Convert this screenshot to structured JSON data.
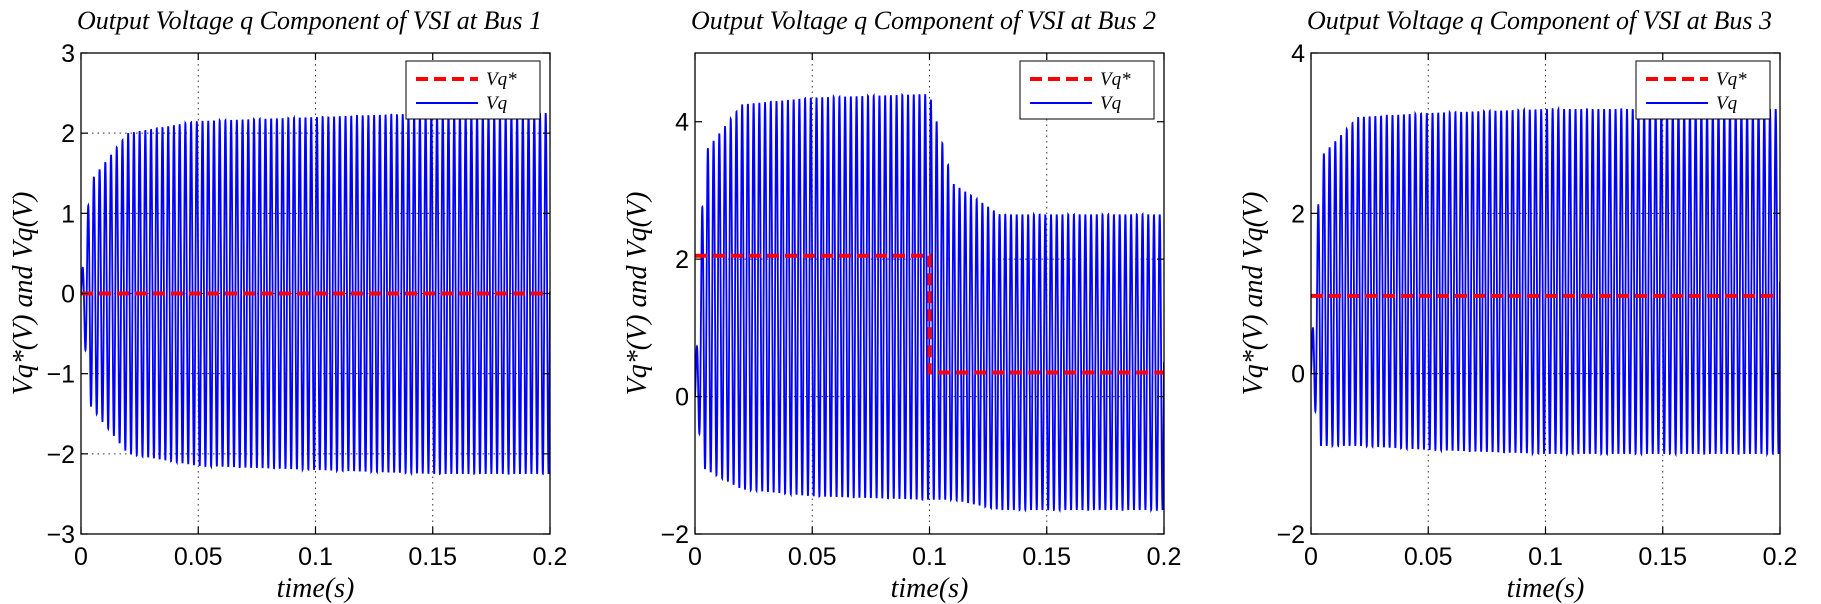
{
  "chart_data": [
    {
      "type": "line",
      "title": "Output Voltage q Component of VSI at Bus 1",
      "xlabel": "time(s)",
      "ylabel": "Vq*(V) and Vq(V)",
      "xlim": [
        0,
        0.2
      ],
      "ylim": [
        -3,
        3
      ],
      "xticks": [
        0,
        0.05,
        0.1,
        0.15,
        0.2
      ],
      "xtick_labels": [
        "0",
        "0.05",
        "0.1",
        "0.15",
        "0.2"
      ],
      "yticks": [
        -3,
        -2,
        -1,
        0,
        1,
        2,
        3
      ],
      "ytick_labels": [
        "−3",
        "−2",
        "−1",
        "0",
        "1",
        "2",
        "3"
      ],
      "grid": true,
      "legend_position": "top-right",
      "series": [
        {
          "name": "Vq*",
          "style": "dashed",
          "color": "#ff0000",
          "x": [
            0,
            0.2
          ],
          "values": [
            0,
            0
          ]
        },
        {
          "name": "Vq",
          "style": "solid",
          "color": "#0000ff",
          "description": "oscillation around center with slowly varying envelope",
          "oscillation_cycles": 82,
          "envelope_time": [
            0,
            0.004,
            0.02,
            0.05,
            0.1,
            0.15,
            0.2
          ],
          "envelope_center": [
            0,
            0.0,
            0.0,
            0.0,
            0.0,
            0.0,
            0.0
          ],
          "envelope_amplitude": [
            0.1,
            1.4,
            2.0,
            2.15,
            2.2,
            2.25,
            2.25
          ]
        }
      ]
    },
    {
      "type": "line",
      "title": "Output Voltage q Component of VSI at Bus 2",
      "xlabel": "time(s)",
      "ylabel": "Vq*(V) and Vq(V)",
      "xlim": [
        0,
        0.2
      ],
      "ylim": [
        -2,
        5
      ],
      "xticks": [
        0,
        0.05,
        0.1,
        0.15,
        0.2
      ],
      "xtick_labels": [
        "0",
        "0.05",
        "0.1",
        "0.15",
        "0.2"
      ],
      "yticks": [
        -2,
        0,
        2,
        4
      ],
      "ytick_labels": [
        "−2",
        "0",
        "2",
        "4"
      ],
      "grid": true,
      "legend_position": "top-right",
      "series": [
        {
          "name": "Vq*",
          "style": "dashed",
          "color": "#ff0000",
          "x": [
            0,
            0.1,
            0.1,
            0.2
          ],
          "values": [
            2.05,
            2.05,
            0.35,
            0.35
          ]
        },
        {
          "name": "Vq",
          "style": "solid",
          "color": "#0000ff",
          "description": "oscillation around center with slowly varying envelope",
          "oscillation_cycles": 82,
          "envelope_time": [
            0,
            0.004,
            0.02,
            0.05,
            0.098,
            0.1,
            0.11,
            0.13,
            0.2
          ],
          "envelope_center": [
            0,
            1.25,
            1.45,
            1.45,
            1.45,
            1.45,
            0.8,
            0.5,
            0.5
          ],
          "envelope_amplitude": [
            0.1,
            2.3,
            2.8,
            2.9,
            2.95,
            2.95,
            2.3,
            2.15,
            2.15
          ]
        }
      ]
    },
    {
      "type": "line",
      "title": "Output Voltage q Component of VSI at Bus 3",
      "xlabel": "time(s)",
      "ylabel": "Vq*(V) and Vq(V)",
      "xlim": [
        0,
        0.2
      ],
      "ylim": [
        -2,
        4
      ],
      "xticks": [
        0,
        0.05,
        0.1,
        0.15,
        0.2
      ],
      "xtick_labels": [
        "0",
        "0.05",
        "0.1",
        "0.15",
        "0.2"
      ],
      "yticks": [
        -2,
        0,
        2,
        4
      ],
      "ytick_labels": [
        "−2",
        "0",
        "2",
        "4"
      ],
      "grid": true,
      "legend_position": "top-right",
      "series": [
        {
          "name": "Vq*",
          "style": "dashed",
          "color": "#ff0000",
          "x": [
            0,
            0.2
          ],
          "values": [
            0.97,
            0.97
          ]
        },
        {
          "name": "Vq",
          "style": "solid",
          "color": "#0000ff",
          "description": "oscillation around center with slowly varying envelope",
          "oscillation_cycles": 82,
          "envelope_time": [
            0,
            0.004,
            0.02,
            0.05,
            0.1,
            0.15,
            0.2
          ],
          "envelope_center": [
            0,
            0.9,
            1.15,
            1.15,
            1.15,
            1.15,
            1.15
          ],
          "envelope_amplitude": [
            0.1,
            1.8,
            2.05,
            2.1,
            2.15,
            2.15,
            2.15
          ]
        }
      ]
    }
  ]
}
